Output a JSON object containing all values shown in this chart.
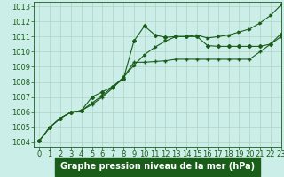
{
  "xlabel": "Graphe pression niveau de la mer (hPa)",
  "xlim": [
    -0.5,
    23
  ],
  "ylim": [
    1003.7,
    1013.3
  ],
  "yticks": [
    1004,
    1005,
    1006,
    1007,
    1008,
    1009,
    1010,
    1011,
    1012,
    1013
  ],
  "xticks": [
    0,
    1,
    2,
    3,
    4,
    5,
    6,
    7,
    8,
    9,
    10,
    11,
    12,
    13,
    14,
    15,
    16,
    17,
    18,
    19,
    20,
    21,
    22,
    23
  ],
  "bg_color": "#cceee8",
  "grid_color": "#aaccbb",
  "line_color": "#1a5c1a",
  "line1_x": [
    0,
    1,
    2,
    3,
    4,
    5,
    6,
    7,
    8,
    9,
    10,
    11,
    12,
    13,
    14,
    15,
    16,
    17,
    18,
    19,
    20,
    21,
    22,
    23
  ],
  "line1_y": [
    1004.1,
    1005.0,
    1005.6,
    1006.0,
    1006.1,
    1007.0,
    1007.35,
    1007.7,
    1008.2,
    1010.7,
    1011.7,
    1011.1,
    1010.95,
    1011.0,
    1011.0,
    1011.0,
    1010.4,
    1010.35,
    1010.35,
    1010.35,
    1010.35,
    1010.35,
    1010.5,
    1011.0
  ],
  "line2_x": [
    0,
    1,
    2,
    3,
    4,
    5,
    6,
    7,
    8,
    9,
    10,
    11,
    12,
    13,
    14,
    15,
    16,
    17,
    18,
    19,
    20,
    21,
    22,
    23
  ],
  "line2_y": [
    1004.1,
    1005.0,
    1005.6,
    1006.0,
    1006.1,
    1006.5,
    1007.0,
    1007.6,
    1008.3,
    1009.3,
    1009.3,
    1009.35,
    1009.4,
    1009.5,
    1009.5,
    1009.5,
    1009.5,
    1009.5,
    1009.5,
    1009.5,
    1009.5,
    1010.0,
    1010.5,
    1011.2
  ],
  "line3_x": [
    0,
    1,
    2,
    3,
    4,
    5,
    6,
    7,
    8,
    9,
    10,
    11,
    12,
    13,
    14,
    15,
    16,
    17,
    18,
    19,
    20,
    21,
    22,
    23
  ],
  "line3_y": [
    1004.1,
    1005.0,
    1005.6,
    1006.0,
    1006.1,
    1006.6,
    1007.1,
    1007.7,
    1008.3,
    1009.1,
    1009.8,
    1010.3,
    1010.7,
    1011.0,
    1011.0,
    1011.1,
    1010.9,
    1011.0,
    1011.1,
    1011.3,
    1011.5,
    1011.9,
    1012.4,
    1013.1
  ],
  "title_color": "#1a5c1a",
  "tick_label_size": 6.0,
  "xlabel_size": 7.0,
  "bg_label_color": "#1a5c1a",
  "bg_label_bg": "#3a9a5c"
}
